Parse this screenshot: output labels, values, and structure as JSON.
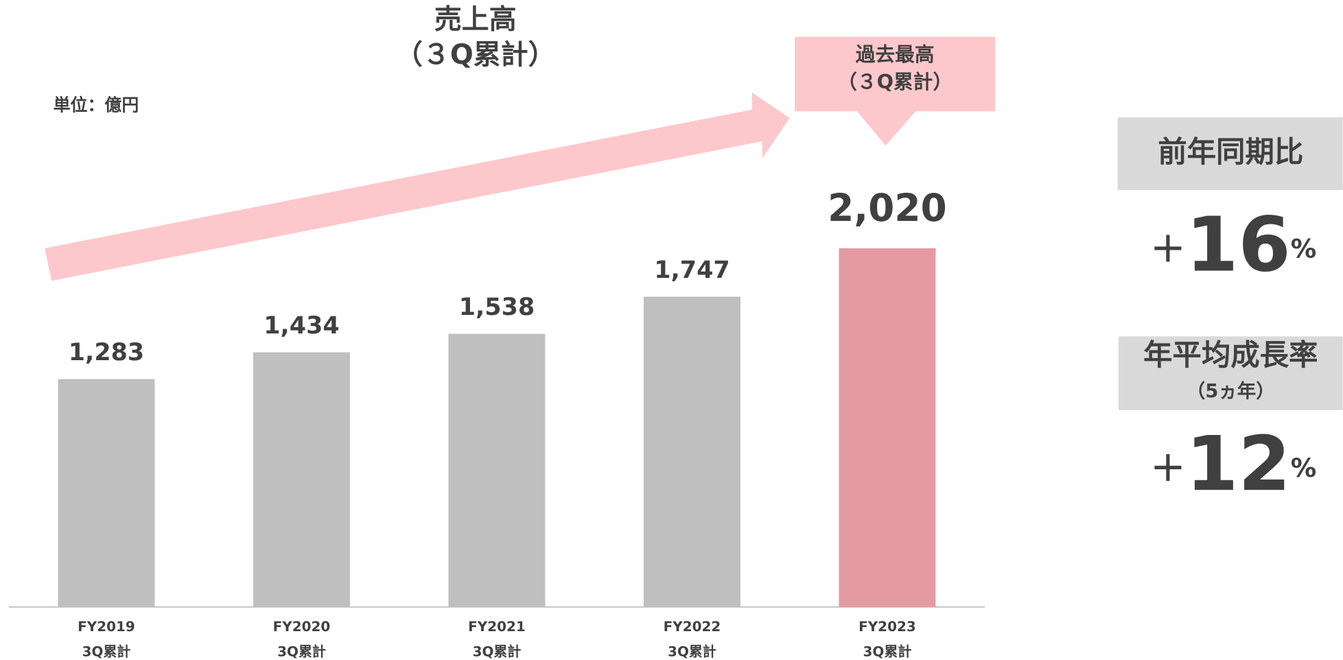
{
  "chart_data": {
    "type": "bar",
    "title": "売上高",
    "subtitle": "（３Q累計）",
    "unit_label": "単位：億円",
    "categories": [
      [
        "FY2019",
        "3Q累計"
      ],
      [
        "FY2020",
        "3Q累計"
      ],
      [
        "FY2021",
        "3Q累計"
      ],
      [
        "FY2022",
        "3Q累計"
      ],
      [
        "FY2023",
        "3Q累計"
      ]
    ],
    "values": [
      1283,
      1434,
      1538,
      1747,
      2020
    ],
    "value_labels": [
      "1,283",
      "1,434",
      "1,538",
      "1,747",
      "2,020"
    ],
    "colors": [
      "#bfbfbf",
      "#bfbfbf",
      "#bfbfbf",
      "#bfbfbf",
      "#e59aa3"
    ],
    "annotation": [
      "過去最高",
      "（３Q累計）"
    ]
  },
  "metrics": [
    {
      "label": [
        "前年同期比"
      ],
      "sign": "+",
      "number": 16,
      "unit": "%"
    },
    {
      "label": [
        "年平均成長率",
        "（5ヵ年）"
      ],
      "sign": "+",
      "number": 12,
      "unit": "%"
    }
  ]
}
